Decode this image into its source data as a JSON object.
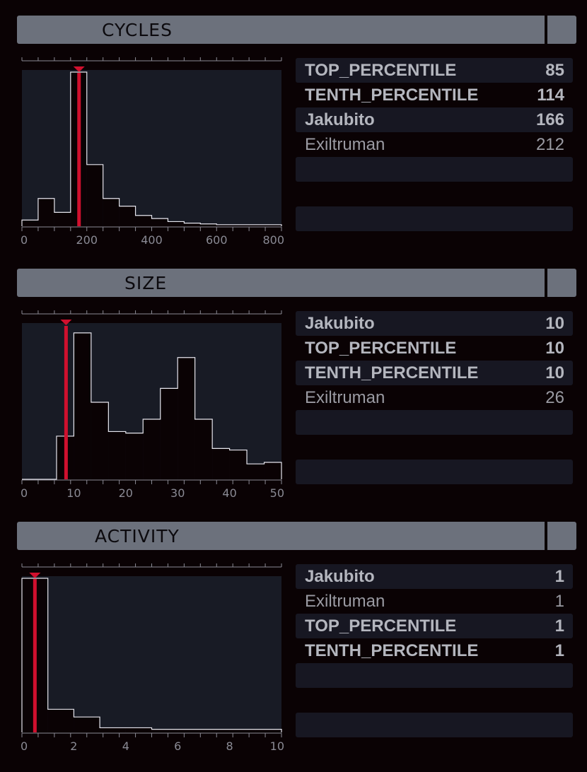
{
  "sections": [
    {
      "title": "CYCLES",
      "rows": [
        {
          "name": "TOP_PERCENTILE",
          "value": "85",
          "bold": true,
          "bar": true
        },
        {
          "name": "TENTH_PERCENTILE",
          "value": "114",
          "bold": true,
          "bar": false
        },
        {
          "name": "Jakubito",
          "value": "166",
          "bold": true,
          "bar": true
        },
        {
          "name": "Exiltruman",
          "value": "212",
          "bold": false,
          "bar": false
        },
        {
          "name": "",
          "value": "",
          "bold": false,
          "bar": true
        },
        {
          "name": "",
          "value": "",
          "bold": false,
          "bar": false
        },
        {
          "name": "",
          "value": "",
          "bold": false,
          "bar": true
        }
      ]
    },
    {
      "title": "SIZE",
      "rows": [
        {
          "name": "Jakubito",
          "value": "10",
          "bold": true,
          "bar": true
        },
        {
          "name": "TOP_PERCENTILE",
          "value": "10",
          "bold": true,
          "bar": false
        },
        {
          "name": "TENTH_PERCENTILE",
          "value": "10",
          "bold": true,
          "bar": true
        },
        {
          "name": "Exiltruman",
          "value": "26",
          "bold": false,
          "bar": false
        },
        {
          "name": "",
          "value": "",
          "bold": false,
          "bar": true
        },
        {
          "name": "",
          "value": "",
          "bold": false,
          "bar": false
        },
        {
          "name": "",
          "value": "",
          "bold": false,
          "bar": true
        }
      ]
    },
    {
      "title": "ACTIVITY",
      "rows": [
        {
          "name": "Jakubito",
          "value": "1",
          "bold": true,
          "bar": true
        },
        {
          "name": "Exiltruman",
          "value": "1",
          "bold": false,
          "bar": false
        },
        {
          "name": "TOP_PERCENTILE",
          "value": "1",
          "bold": true,
          "bar": true
        },
        {
          "name": "TENTH_PERCENTILE",
          "value": "1",
          "bold": true,
          "bar": false
        },
        {
          "name": "",
          "value": "",
          "bold": false,
          "bar": true
        },
        {
          "name": "",
          "value": "",
          "bold": false,
          "bar": false
        },
        {
          "name": "",
          "value": "",
          "bold": false,
          "bar": true
        }
      ]
    }
  ],
  "chart_data": [
    {
      "type": "area",
      "title": "CYCLES",
      "xlim": [
        0,
        800
      ],
      "xticks": [
        0,
        200,
        400,
        600,
        800
      ],
      "bin_edges": [
        0,
        50,
        100,
        150,
        200,
        250,
        300,
        350,
        400,
        450,
        500,
        550,
        600,
        650,
        700,
        750,
        800
      ],
      "counts": [
        0.04,
        0.18,
        0.09,
        1.0,
        0.4,
        0.18,
        0.13,
        0.07,
        0.05,
        0.03,
        0.02,
        0.015,
        0.01,
        0.01,
        0.01,
        0.01
      ],
      "marker": 176
    },
    {
      "type": "area",
      "title": "SIZE",
      "xlim": [
        0,
        50
      ],
      "xticks": [
        0,
        10,
        20,
        30,
        40,
        50
      ],
      "bin_edges": [
        0,
        3.33,
        6.67,
        10,
        13.33,
        16.67,
        20,
        23.33,
        26.67,
        30,
        33.33,
        36.67,
        40,
        43.33,
        46.67,
        50
      ],
      "counts": [
        0.0,
        0.0,
        0.28,
        0.95,
        0.5,
        0.31,
        0.3,
        0.39,
        0.59,
        0.79,
        0.39,
        0.2,
        0.19,
        0.1,
        0.11
      ],
      "marker": 8.5
    },
    {
      "type": "area",
      "title": "ACTIVITY",
      "xlim": [
        0,
        10
      ],
      "xticks": [
        0,
        2,
        4,
        6,
        8,
        10
      ],
      "bin_edges": [
        0,
        1,
        2,
        3,
        4,
        5,
        6,
        7,
        8,
        9,
        10
      ],
      "counts": [
        1.0,
        0.15,
        0.1,
        0.03,
        0.03,
        0.02,
        0.02,
        0.02,
        0.02,
        0.02
      ],
      "marker": 0.5
    }
  ],
  "colors": {
    "background": "#0a0204",
    "header": "#6c717c",
    "plot_bg": "#181b25",
    "hist_fill": "#0a0204",
    "hist_line": "#e6e6ee",
    "marker": "#d0102e",
    "row_bar": "#171722",
    "text": "#9a9aa2",
    "text_bold": "#b4b6be"
  }
}
